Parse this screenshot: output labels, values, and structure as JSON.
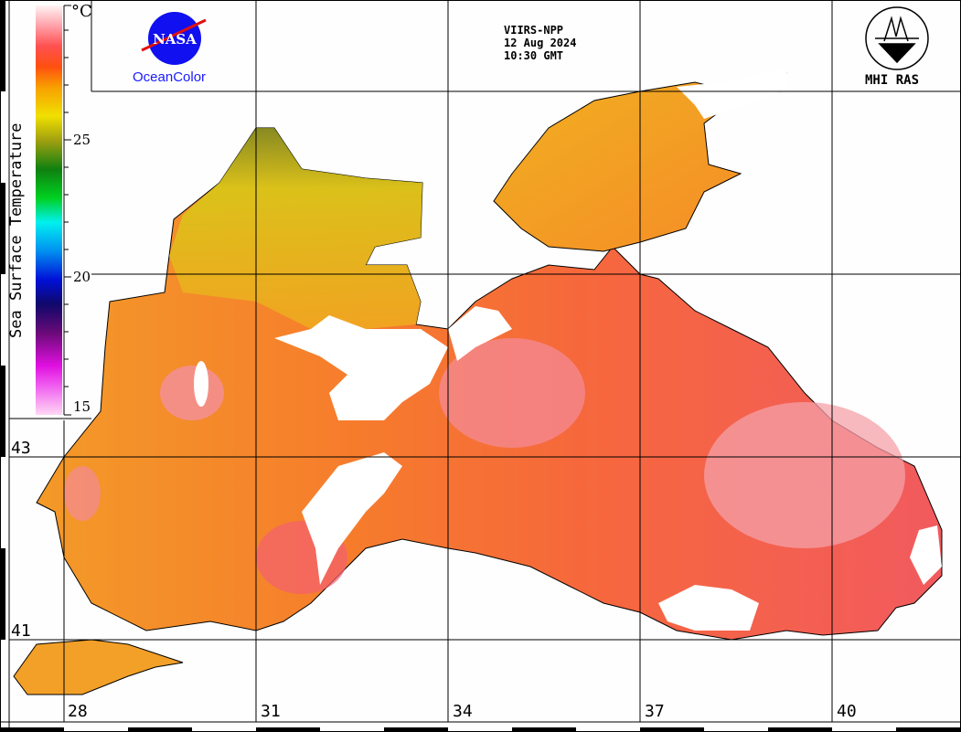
{
  "header": {
    "sensor": "VIIRS-NPP",
    "date": "12 Aug 2024",
    "time": "10:30 GMT"
  },
  "logos": {
    "nasa_text": "NASA",
    "oceancolor": "OceanColor",
    "mhi": "MHI RAS"
  },
  "legend": {
    "title": "Sea Surface Temperature",
    "unit": "°C",
    "ticks": [
      "25",
      "20",
      "15"
    ],
    "range": [
      15,
      30
    ],
    "colors": [
      "#ffd8f4",
      "#f020e8",
      "#7a0a80",
      "#10086a",
      "#0010d0",
      "#0090f0",
      "#00f0f0",
      "#00d020",
      "#108010",
      "#a0a010",
      "#f0e000",
      "#f8a000",
      "#ff5010",
      "#ff5050",
      "#ffa0a8",
      "#fff0f0"
    ]
  },
  "grid": {
    "longitudes": [
      "28",
      "31",
      "34",
      "37",
      "40"
    ],
    "latitudes": [
      "43",
      "41"
    ]
  }
}
